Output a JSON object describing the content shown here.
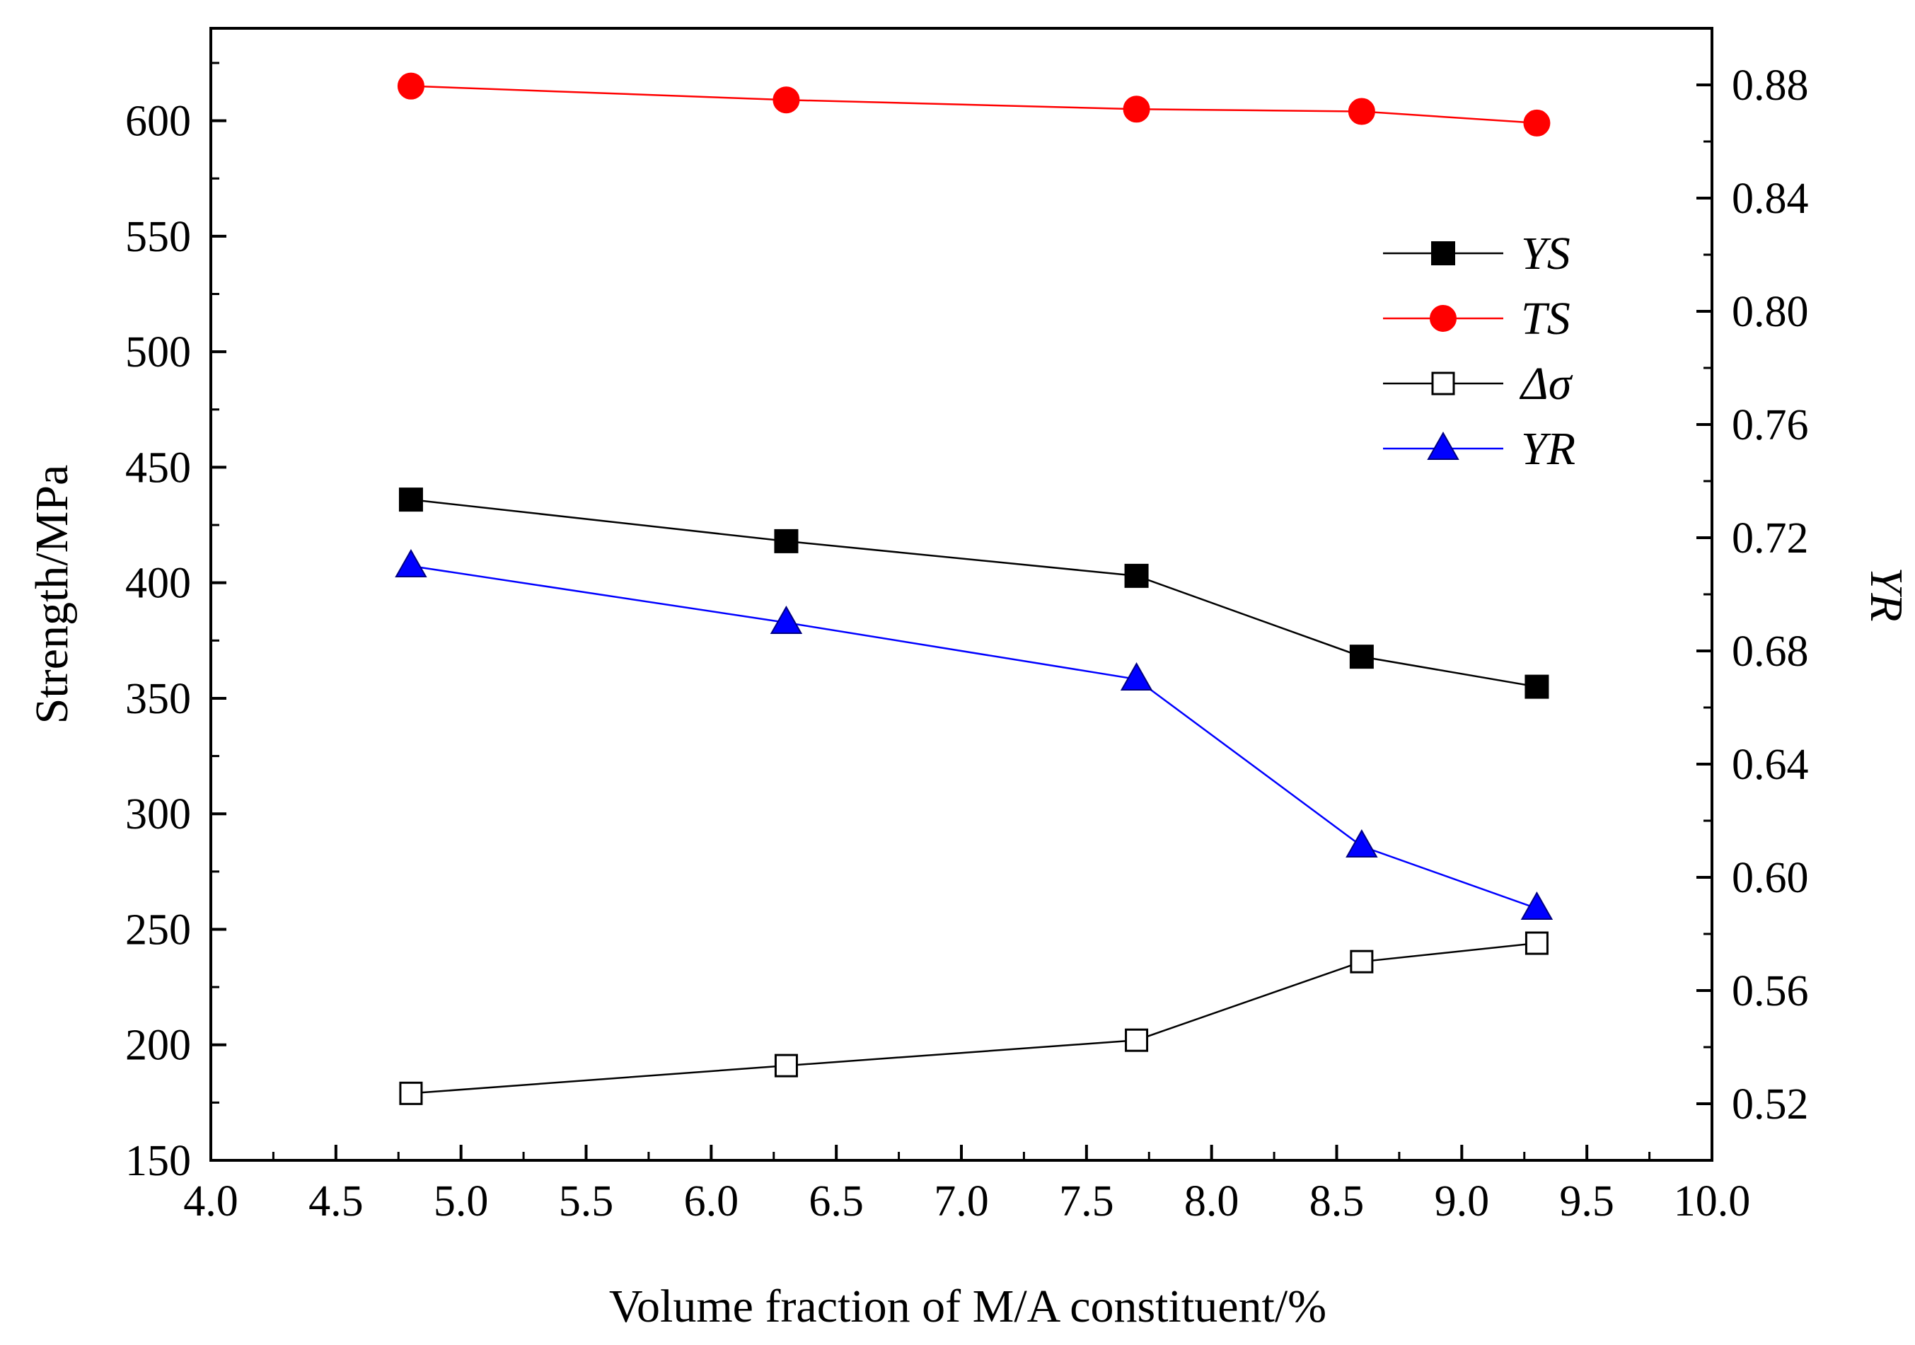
{
  "chart_data": {
    "type": "line",
    "x": [
      4.8,
      6.3,
      7.7,
      8.6,
      9.3
    ],
    "xlabel": "Volume fraction of M/A constituent/%",
    "ylabel": "Strength/MPa",
    "y2label": "YR",
    "xlim": [
      4.0,
      10.0
    ],
    "ylim": [
      150,
      640
    ],
    "y2lim": [
      0.5,
      0.9
    ],
    "xticks": [
      4.0,
      4.5,
      5.0,
      5.5,
      6.0,
      6.5,
      7.0,
      7.5,
      8.0,
      8.5,
      9.0,
      9.5,
      10.0
    ],
    "xtick_labels": [
      "4.0",
      "4.5",
      "5.0",
      "5.5",
      "6.0",
      "6.5",
      "7.0",
      "7.5",
      "8.0",
      "8.5",
      "9.0",
      "9.5",
      "10.0"
    ],
    "yticks": [
      150,
      200,
      250,
      300,
      350,
      400,
      450,
      500,
      550,
      600
    ],
    "ytick_labels": [
      "150",
      "200",
      "250",
      "300",
      "350",
      "400",
      "450",
      "500",
      "550",
      "600"
    ],
    "y2ticks": [
      0.52,
      0.56,
      0.6,
      0.64,
      0.68,
      0.72,
      0.76,
      0.8,
      0.84,
      0.88
    ],
    "y2tick_labels": [
      "0.52",
      "0.56",
      "0.60",
      "0.64",
      "0.68",
      "0.72",
      "0.76",
      "0.80",
      "0.84",
      "0.88"
    ],
    "legend_position": "upper-right",
    "series": [
      {
        "name": "YS",
        "axis": "left",
        "values": [
          436,
          418,
          403,
          368,
          355
        ],
        "color": "#000000",
        "marker": "square-filled"
      },
      {
        "name": "TS",
        "axis": "left",
        "values": [
          615,
          609,
          605,
          604,
          599
        ],
        "color": "#ff0000",
        "marker": "circle-filled"
      },
      {
        "name": "Δσ",
        "axis": "left",
        "values": [
          179,
          191,
          202,
          236,
          244
        ],
        "color": "#000000",
        "marker": "square-open"
      },
      {
        "name": "YR",
        "axis": "right",
        "values": [
          0.71,
          0.69,
          0.67,
          0.611,
          0.589
        ],
        "color": "#0000ff",
        "marker": "triangle-filled"
      }
    ]
  }
}
